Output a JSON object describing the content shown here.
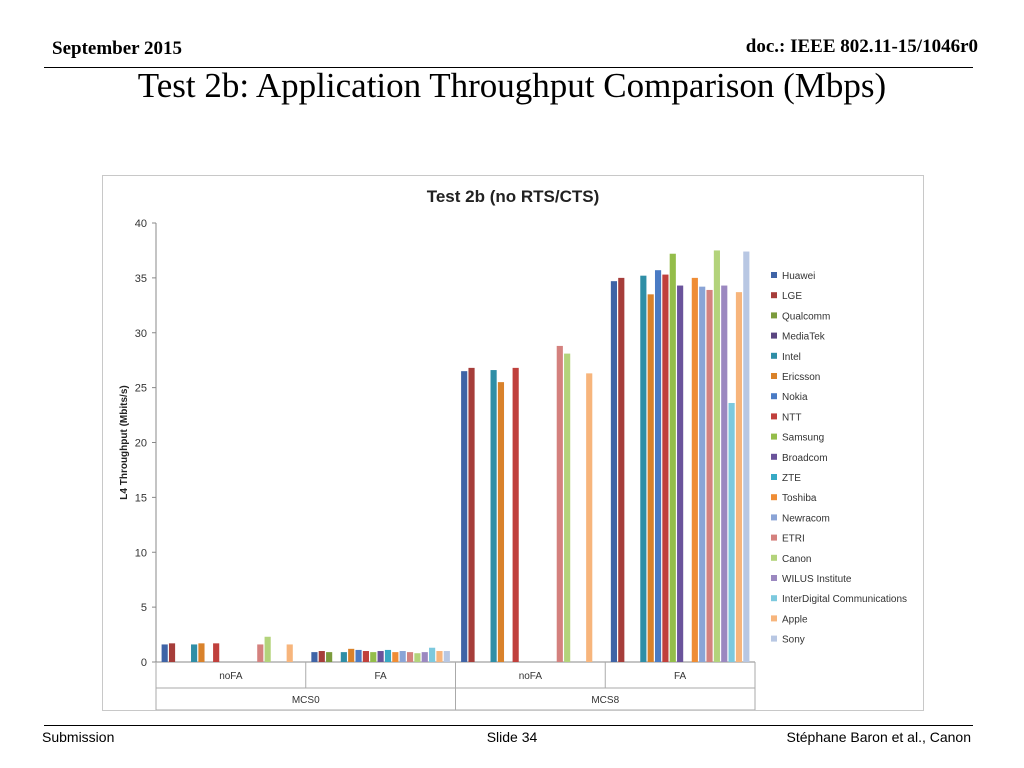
{
  "header": {
    "date": "September 2015",
    "doc": "doc.: IEEE 802.11-15/1046r0",
    "title": "Test 2b: Application Throughput Comparison (Mbps)"
  },
  "footer": {
    "left": "Submission",
    "center": "Slide 34",
    "right": "Stéphane Baron et al., Canon"
  },
  "chart_data": {
    "type": "bar",
    "title": "Test 2b (no RTS/CTS)",
    "ylabel": "L4 Throughput (Mbits/s)",
    "xlabel": "",
    "ylim": [
      0,
      40
    ],
    "yticks": [
      0,
      5,
      10,
      15,
      20,
      25,
      30,
      35,
      40
    ],
    "grid": false,
    "legend_position": "right",
    "categories": [
      "MCS0 / noFA",
      "MCS0 / FA",
      "MCS8 / noFA",
      "MCS8 / FA"
    ],
    "category_labels": [
      "noFA",
      "FA",
      "noFA",
      "FA"
    ],
    "groups": [
      {
        "label": "MCS0",
        "span": [
          0,
          1
        ]
      },
      {
        "label": "MCS8",
        "span": [
          2,
          3
        ]
      }
    ],
    "series": [
      {
        "name": "Huawei",
        "color": "#3f64a6",
        "values": [
          1.6,
          0.9,
          26.5,
          34.7
        ]
      },
      {
        "name": "LGE",
        "color": "#a63d3a",
        "values": [
          1.7,
          1.0,
          26.8,
          35.0
        ]
      },
      {
        "name": "Qualcomm",
        "color": "#7b9b3c",
        "values": [
          null,
          0.9,
          null,
          null
        ]
      },
      {
        "name": "MediaTek",
        "color": "#5a4580",
        "values": [
          null,
          null,
          null,
          null
        ]
      },
      {
        "name": "Intel",
        "color": "#2f8ea6",
        "values": [
          1.6,
          0.9,
          26.6,
          35.2
        ]
      },
      {
        "name": "Ericsson",
        "color": "#d9822b",
        "values": [
          1.7,
          1.2,
          25.5,
          33.5
        ]
      },
      {
        "name": "Nokia",
        "color": "#4a7bc4",
        "values": [
          null,
          1.1,
          null,
          35.7
        ]
      },
      {
        "name": "NTT",
        "color": "#c0403c",
        "values": [
          1.7,
          1.0,
          26.8,
          35.3
        ]
      },
      {
        "name": "Samsung",
        "color": "#94bd4a",
        "values": [
          null,
          0.9,
          null,
          37.2
        ]
      },
      {
        "name": "Broadcom",
        "color": "#6a539b",
        "values": [
          null,
          1.0,
          null,
          34.3
        ]
      },
      {
        "name": "ZTE",
        "color": "#37a9c4",
        "values": [
          null,
          1.1,
          null,
          null
        ]
      },
      {
        "name": "Toshiba",
        "color": "#ef8d35",
        "values": [
          null,
          0.9,
          null,
          35.0
        ]
      },
      {
        "name": "Newracom",
        "color": "#8aa4d6",
        "values": [
          null,
          1.0,
          null,
          34.2
        ]
      },
      {
        "name": "ETRI",
        "color": "#d4817e",
        "values": [
          1.6,
          0.9,
          28.8,
          33.9
        ]
      },
      {
        "name": "Canon",
        "color": "#b3d37b",
        "values": [
          2.3,
          0.8,
          28.1,
          37.5
        ]
      },
      {
        "name": "WILUS Institute",
        "color": "#9b88c0",
        "values": [
          null,
          0.9,
          null,
          34.3
        ]
      },
      {
        "name": "InterDigital Communications",
        "color": "#7cc9de",
        "values": [
          null,
          1.3,
          null,
          23.6
        ]
      },
      {
        "name": "Apple",
        "color": "#f7b57c",
        "values": [
          1.6,
          1.0,
          26.3,
          33.7
        ]
      },
      {
        "name": "Sony",
        "color": "#b8c7e3",
        "values": [
          null,
          1.0,
          null,
          37.4
        ]
      }
    ]
  }
}
